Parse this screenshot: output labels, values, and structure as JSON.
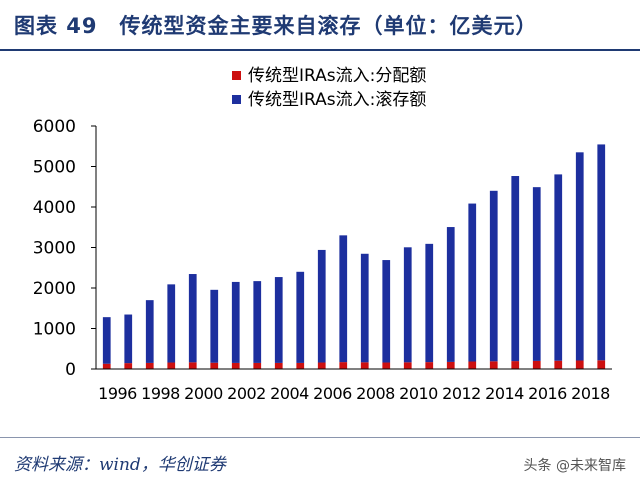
{
  "figure": {
    "title": "图表 49　传统型资金主要来自滚存（单位：亿美元）",
    "source": "资料来源：wind，华创证券",
    "watermark": "头条 @未来智库"
  },
  "colors": {
    "title": "#1f3a73",
    "distribution": "#cc1010",
    "rollover": "#1d2f9e"
  },
  "chart_data": {
    "type": "bar",
    "stacked": true,
    "title": "",
    "xlabel": "",
    "ylabel": "",
    "ylim": [
      0,
      6000
    ],
    "yticks": [
      0,
      1000,
      2000,
      3000,
      4000,
      5000,
      6000
    ],
    "x_label_years": [
      "1996",
      "1998",
      "2000",
      "2002",
      "2004",
      "2006",
      "2008",
      "2010",
      "2012",
      "2014",
      "2016",
      "2018"
    ],
    "categories": [
      "1996",
      "1997",
      "1998",
      "1999",
      "2000",
      "2001",
      "2002",
      "2003",
      "2004",
      "2005",
      "2006",
      "2007",
      "2008",
      "2009",
      "2010",
      "2011",
      "2012",
      "2013",
      "2014",
      "2015",
      "2016",
      "2017",
      "2018",
      "2019"
    ],
    "legend_position": "top",
    "grid": false,
    "series": [
      {
        "name": "传统型IRAs流入:分配额",
        "color_key": "distribution",
        "values": [
          130,
          145,
          150,
          160,
          165,
          155,
          150,
          150,
          150,
          150,
          160,
          170,
          165,
          160,
          165,
          170,
          175,
          185,
          190,
          195,
          200,
          205,
          210,
          215
        ]
      },
      {
        "name": "传统型IRAs流入:滚存额",
        "color_key": "rollover",
        "values": [
          1150,
          1200,
          1550,
          1930,
          2180,
          1800,
          2000,
          2020,
          2120,
          2250,
          2780,
          3130,
          2680,
          2530,
          2840,
          2920,
          3330,
          3900,
          4210,
          4570,
          4290,
          4600,
          5140,
          5330
        ]
      }
    ]
  }
}
